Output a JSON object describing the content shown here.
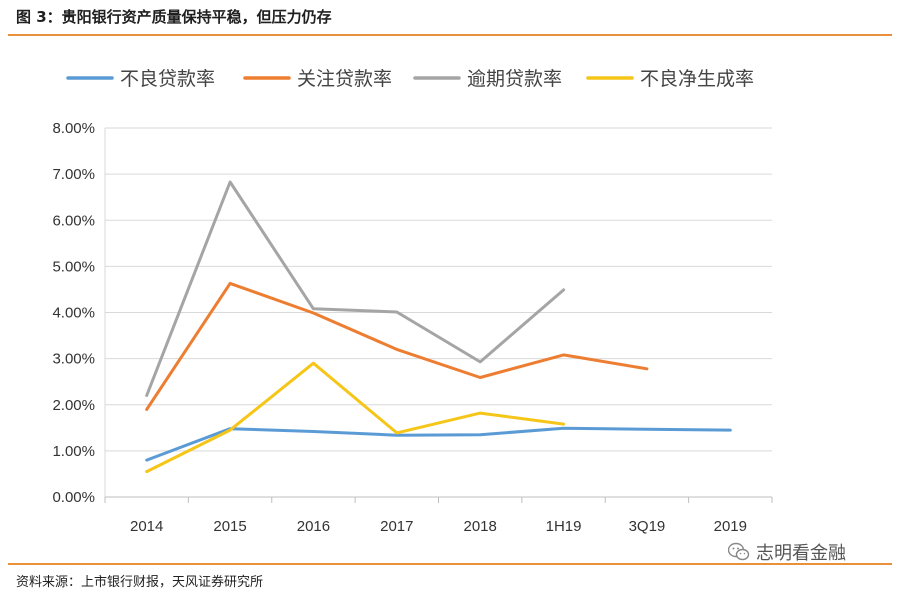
{
  "header": {
    "title": "图 3：贵阳银行资产质量保持平稳，但压力仍存"
  },
  "footer": {
    "source": "资料来源：上市银行财报，天风证券研究所"
  },
  "watermark": {
    "text": "志明看金融",
    "icon": "wechat-icon"
  },
  "chart_data": {
    "type": "line",
    "categories": [
      "2014",
      "2015",
      "2016",
      "2017",
      "2018",
      "1H19",
      "3Q19",
      "2019"
    ],
    "ylim": [
      0,
      8
    ],
    "yticks": [
      "0.00%",
      "1.00%",
      "2.00%",
      "3.00%",
      "4.00%",
      "5.00%",
      "6.00%",
      "7.00%",
      "8.00%"
    ],
    "grid": true,
    "legend": "top",
    "series": [
      {
        "name": "不良贷款率",
        "color": "#5b9bd5",
        "values": [
          0.8,
          1.48,
          1.42,
          1.34,
          1.35,
          1.49,
          1.47,
          1.45
        ]
      },
      {
        "name": "关注贷款率",
        "color": "#ed7d31",
        "values": [
          1.9,
          4.63,
          3.99,
          3.2,
          2.59,
          3.08,
          2.78,
          null
        ]
      },
      {
        "name": "逾期贷款率",
        "color": "#a5a5a5",
        "values": [
          2.2,
          6.83,
          4.08,
          4.01,
          2.93,
          4.49,
          null,
          null
        ]
      },
      {
        "name": "不良净生成率",
        "color": "#f5c518",
        "values": [
          0.55,
          1.45,
          2.9,
          1.39,
          1.82,
          1.58,
          null,
          null
        ]
      }
    ]
  }
}
